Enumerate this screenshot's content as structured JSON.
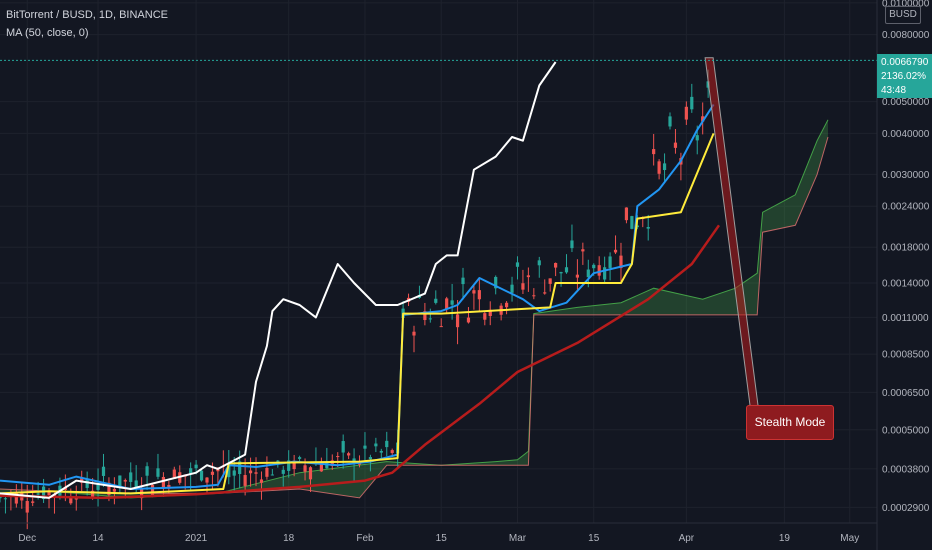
{
  "header": {
    "title": "BitTorrent / BUSD, 1D, BINANCE",
    "indicator": "MA (50, close, 0)"
  },
  "price_axis": {
    "currency_tag": "BUSD",
    "current_price": "0.0066790",
    "change_pct": "2136.02%",
    "countdown": "43:48"
  },
  "annotation": {
    "label": "Stealth Mode"
  },
  "colors": {
    "background": "#131722",
    "up": "#26a69a",
    "down": "#ef5350",
    "conversion": "#2196f3",
    "base": "#ffeb3b",
    "lagging": "#ffffff",
    "ma": "#b71c1c",
    "cloud_fill": "#4caf50"
  },
  "chart_data": {
    "type": "line",
    "title": "BitTorrent / BUSD, 1D, BINANCE",
    "xlabel": "",
    "ylabel": "",
    "y_scale": "log",
    "ylim": [
      0.00026,
      0.0102
    ],
    "y_ticks": [
      "0.0100000",
      "0.0080000",
      "0.0050000",
      "0.0040000",
      "0.0030000",
      "0.0024000",
      "0.0018000",
      "0.0014000",
      "0.0011000",
      "0.0008500",
      "0.0006500",
      "0.0005000",
      "0.0003800",
      "0.0002900"
    ],
    "x_range": [
      "2020-11-26",
      "2021-05-06"
    ],
    "x_ticks": [
      {
        "label": "Dec",
        "date": "2020-12-01"
      },
      {
        "label": "14",
        "date": "2020-12-14"
      },
      {
        "label": "2021",
        "date": "2021-01-01"
      },
      {
        "label": "18",
        "date": "2021-01-18"
      },
      {
        "label": "Feb",
        "date": "2021-02-01"
      },
      {
        "label": "15",
        "date": "2021-02-15"
      },
      {
        "label": "Mar",
        "date": "2021-03-01"
      },
      {
        "label": "15",
        "date": "2021-03-15"
      },
      {
        "label": "Apr",
        "date": "2021-04-01"
      },
      {
        "label": "19",
        "date": "2021-04-19"
      },
      {
        "label": "May",
        "date": "2021-05-01"
      }
    ],
    "series": [
      {
        "name": "MA (50, close, 0)",
        "points": [
          [
            "2020-11-26",
            0.000315
          ],
          [
            "2020-12-15",
            0.00031
          ],
          [
            "2021-01-01",
            0.000318
          ],
          [
            "2021-01-20",
            0.000335
          ],
          [
            "2021-02-01",
            0.00035
          ],
          [
            "2021-02-06",
            0.00037
          ],
          [
            "2021-02-12",
            0.00045
          ],
          [
            "2021-02-22",
            0.0006
          ],
          [
            "2021-03-01",
            0.00075
          ],
          [
            "2021-03-12",
            0.00092
          ],
          [
            "2021-03-25",
            0.00125
          ],
          [
            "2021-04-02",
            0.0016
          ],
          [
            "2021-04-07",
            0.0021
          ]
        ]
      },
      {
        "points": [
          [
            "2020-11-26",
            0.00035
          ],
          [
            "2020-12-05",
            0.00034
          ],
          [
            "2020-12-10",
            0.00036
          ],
          [
            "2020-12-20",
            0.00033
          ],
          [
            "2021-01-01",
            0.000335
          ],
          [
            "2021-01-05",
            0.00034
          ],
          [
            "2021-01-07",
            0.00039
          ],
          [
            "2021-01-12",
            0.000385
          ],
          [
            "2021-01-19",
            0.0004
          ],
          [
            "2021-01-27",
            0.00039
          ],
          [
            "2021-02-02",
            0.0004
          ],
          [
            "2021-02-07",
            0.00042
          ],
          [
            "2021-02-08",
            0.00112
          ],
          [
            "2021-02-15",
            0.00115
          ],
          [
            "2021-02-18",
            0.0012
          ],
          [
            "2021-02-22",
            0.00145
          ],
          [
            "2021-03-02",
            0.00125
          ],
          [
            "2021-03-05",
            0.00115
          ],
          [
            "2021-03-10",
            0.00122
          ],
          [
            "2021-03-15",
            0.0015
          ],
          [
            "2021-03-22",
            0.0016
          ],
          [
            "2021-03-23",
            0.0024
          ],
          [
            "2021-03-27",
            0.0027
          ],
          [
            "2021-03-31",
            0.0033
          ],
          [
            "2021-04-03",
            0.0041
          ],
          [
            "2021-04-06",
            0.0049
          ]
        ]
      },
      {
        "points": [
          [
            "2020-11-26",
            0.00032
          ],
          [
            "2020-12-05",
            0.000325
          ],
          [
            "2020-12-20",
            0.00032
          ],
          [
            "2021-01-06",
            0.00033
          ],
          [
            "2021-01-07",
            0.000395
          ],
          [
            "2021-01-31",
            0.0004
          ],
          [
            "2021-02-07",
            0.00041
          ],
          [
            "2021-02-08",
            0.00113
          ],
          [
            "2021-02-15",
            0.00113
          ],
          [
            "2021-03-07",
            0.00118
          ],
          [
            "2021-03-08",
            0.0014
          ],
          [
            "2021-03-20",
            0.0014
          ],
          [
            "2021-03-21",
            0.0015
          ],
          [
            "2021-03-22",
            0.0016
          ],
          [
            "2021-03-23",
            0.0022
          ],
          [
            "2021-03-31",
            0.0023
          ],
          [
            "2021-04-06",
            0.004
          ]
        ]
      },
      {
        "points": [
          [
            "2020-11-26",
            0.00032
          ],
          [
            "2020-12-05",
            0.00031
          ],
          [
            "2020-12-10",
            0.00035
          ],
          [
            "2020-12-20",
            0.00033
          ],
          [
            "2021-01-01",
            0.00037
          ],
          [
            "2021-01-03",
            0.00039
          ],
          [
            "2021-01-05",
            0.00038
          ],
          [
            "2021-01-10",
            0.00042
          ],
          [
            "2021-01-12",
            0.0007
          ],
          [
            "2021-01-14",
            0.0009
          ],
          [
            "2021-01-15",
            0.00115
          ],
          [
            "2021-01-17",
            0.00125
          ],
          [
            "2021-01-20",
            0.0012
          ],
          [
            "2021-01-23",
            0.0011
          ],
          [
            "2021-01-27",
            0.0016
          ],
          [
            "2021-01-30",
            0.0014
          ],
          [
            "2021-02-03",
            0.0012
          ],
          [
            "2021-02-07",
            0.0012
          ],
          [
            "2021-02-12",
            0.0013
          ],
          [
            "2021-02-14",
            0.0016
          ],
          [
            "2021-02-16",
            0.0017
          ],
          [
            "2021-02-18",
            0.0017
          ],
          [
            "2021-02-21",
            0.0031
          ],
          [
            "2021-02-25",
            0.0034
          ],
          [
            "2021-02-28",
            0.0039
          ],
          [
            "2021-03-02",
            0.0038
          ],
          [
            "2021-03-05",
            0.0056
          ],
          [
            "2021-03-08",
            0.0066
          ]
        ]
      }
    ],
    "cloud": {
      "span_a": [
        [
          "2020-11-26",
          0.00032
        ],
        [
          "2020-12-05",
          0.000325
        ],
        [
          "2020-12-20",
          0.00031
        ],
        [
          "2021-01-05",
          0.00032
        ],
        [
          "2021-01-20",
          0.00037
        ],
        [
          "2021-02-05",
          0.0004
        ],
        [
          "2021-02-15",
          0.00039
        ],
        [
          "2021-02-25",
          0.0004
        ],
        [
          "2021-03-01",
          0.000405
        ],
        [
          "2021-03-03",
          0.00043
        ],
        [
          "2021-03-04",
          0.00113
        ],
        [
          "2021-03-12",
          0.00118
        ],
        [
          "2021-03-20",
          0.00122
        ],
        [
          "2021-03-26",
          0.00135
        ],
        [
          "2021-04-04",
          0.00125
        ],
        [
          "2021-04-10",
          0.00135
        ],
        [
          "2021-04-14",
          0.0015
        ],
        [
          "2021-04-15",
          0.0023
        ],
        [
          "2021-04-21",
          0.0026
        ],
        [
          "2021-04-25",
          0.0038
        ],
        [
          "2021-04-27",
          0.0044
        ]
      ],
      "span_b": [
        [
          "2020-11-26",
          0.00033
        ],
        [
          "2020-12-15",
          0.00032
        ],
        [
          "2021-01-05",
          0.00032
        ],
        [
          "2021-01-20",
          0.00033
        ],
        [
          "2021-01-31",
          0.00031
        ],
        [
          "2021-02-05",
          0.00039
        ],
        [
          "2021-03-03",
          0.00039
        ],
        [
          "2021-03-04",
          0.00112
        ],
        [
          "2021-04-13",
          0.00112
        ],
        [
          "2021-04-14",
          0.00112
        ],
        [
          "2021-04-15",
          0.002
        ],
        [
          "2021-04-21",
          0.0021
        ],
        [
          "2021-04-25",
          0.003
        ],
        [
          "2021-04-27",
          0.0039
        ]
      ]
    },
    "candles_approx": {
      "description_ranges": [
        {
          "from": "2020-11-26",
          "to": "2021-01-06",
          "low": 0.00028,
          "high": 0.00042
        },
        {
          "from": "2021-01-07",
          "to": "2021-02-07",
          "low": 0.00033,
          "high": 0.00047
        },
        {
          "from": "2021-02-08",
          "to": "2021-03-19",
          "low": 0.0009,
          "high": 0.0021
        },
        {
          "from": "2021-03-20",
          "to": "2021-04-05",
          "low": 0.0014,
          "high": 0.0068
        }
      ],
      "last_close": 0.006679
    },
    "projection": [
      [
        "2021-04-05",
        0.0068
      ],
      [
        "2021-04-14",
        0.0005
      ]
    ]
  }
}
